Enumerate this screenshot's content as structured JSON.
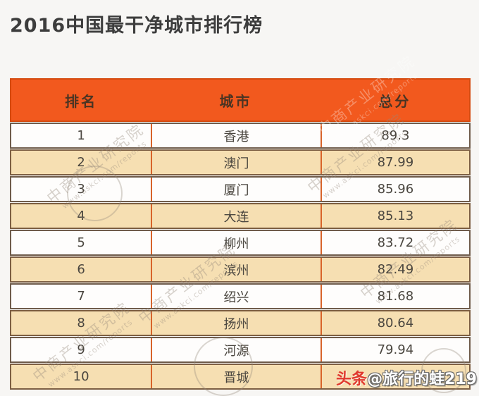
{
  "page": {
    "title": "2016中国最干净城市排行榜",
    "background": "#f7f6f4"
  },
  "table": {
    "columns": [
      "排名",
      "城市",
      "总分"
    ],
    "rows": [
      {
        "rank": "1",
        "city": "香港",
        "score": "89.3"
      },
      {
        "rank": "2",
        "city": "澳门",
        "score": "87.99"
      },
      {
        "rank": "3",
        "city": "厦门",
        "score": "85.96"
      },
      {
        "rank": "4",
        "city": "大连",
        "score": "85.13"
      },
      {
        "rank": "5",
        "city": "柳州",
        "score": "83.72"
      },
      {
        "rank": "6",
        "city": "滨州",
        "score": "82.49"
      },
      {
        "rank": "7",
        "city": "绍兴",
        "score": "81.68"
      },
      {
        "rank": "8",
        "city": "扬州",
        "score": "80.64"
      },
      {
        "rank": "9",
        "city": "河源",
        "score": "79.94"
      },
      {
        "rank": "10",
        "city": "晋城",
        "score": ""
      }
    ],
    "colors": {
      "header_bg": "#f2591e",
      "header_text": "#4a3423",
      "row_bg": "#fefdfc",
      "alt_row_bg": "#f6dfb2",
      "row_border": "#6f5c4b",
      "column_divider": "#d8632a",
      "cell_text": "#4a463f"
    }
  },
  "watermark": {
    "line1": "中商产业研究院",
    "line2": "www.askci.com/reports"
  },
  "badge": {
    "prefix": "头条",
    "handle": "@旅行的蛙219",
    "prefix_color": "#e03a2e"
  },
  "chart_data": {
    "type": "table",
    "title": "2016中国最干净城市排行榜",
    "columns": [
      "排名",
      "城市",
      "总分"
    ],
    "rows": [
      [
        "1",
        "香港",
        "89.3"
      ],
      [
        "2",
        "澳门",
        "87.99"
      ],
      [
        "3",
        "厦门",
        "85.96"
      ],
      [
        "4",
        "大连",
        "85.13"
      ],
      [
        "5",
        "柳州",
        "83.72"
      ],
      [
        "6",
        "滨州",
        "82.49"
      ],
      [
        "7",
        "绍兴",
        "81.68"
      ],
      [
        "8",
        "扬州",
        "80.64"
      ],
      [
        "9",
        "河源",
        "79.94"
      ],
      [
        "10",
        "晋城",
        ""
      ]
    ]
  }
}
